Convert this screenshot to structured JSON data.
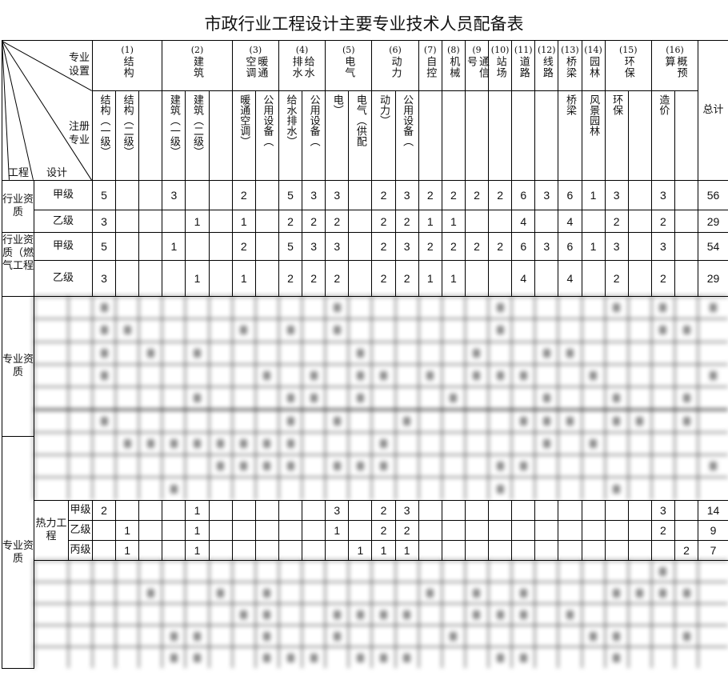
{
  "title": "市政行业工程设计主要专业技术人员配备表",
  "corner": {
    "top_right": "专业设置",
    "mid_right": "注册专业",
    "bottom_mid": "设计",
    "bottom_left": "工程"
  },
  "groups": [
    {
      "num": "(1)",
      "name": "结构",
      "span": 3
    },
    {
      "num": "(2)",
      "name": "建筑",
      "span": 3
    },
    {
      "num": "(3)",
      "name": "暖通空调",
      "span": 2
    },
    {
      "num": "(4)",
      "name": "给水排水",
      "span": 2
    },
    {
      "num": "(5)",
      "name": "电气",
      "span": 2
    },
    {
      "num": "(6)",
      "name": "动力",
      "span": 2
    },
    {
      "num": "(7)",
      "name": "自控",
      "span": 1
    },
    {
      "num": "(8)",
      "name": "机械",
      "span": 1
    },
    {
      "num": "(9",
      "name": "通信号",
      "span": 1
    },
    {
      "num": "(10)",
      "name": "站场",
      "span": 1
    },
    {
      "num": "(11)",
      "name": "道路",
      "span": 1
    },
    {
      "num": "(12)",
      "name": "线路",
      "span": 1
    },
    {
      "num": "(13)",
      "name": "桥梁",
      "span": 1
    },
    {
      "num": "(14)",
      "name": "园林",
      "span": 1
    },
    {
      "num": "(15)",
      "name": "环保",
      "span": 2
    },
    {
      "num": "(16)",
      "name": "概预算",
      "span": 2
    }
  ],
  "subheaders": [
    "结构（一级）",
    "结构（二级）",
    "",
    "建筑（一级）",
    "建筑（二级）",
    "",
    "暖通空调）",
    "公用设备（",
    "给水排水）",
    "公用设备（",
    "电）",
    "电气（供配",
    "动力）",
    "公用设备（",
    "",
    "",
    "",
    "",
    "",
    "",
    "桥梁",
    "风景园林",
    "环保",
    "",
    "造价",
    ""
  ],
  "total_label": "总计",
  "industry_rows": [
    {
      "group": "行业资质",
      "grade": "甲级",
      "values": [
        "5",
        "",
        "",
        "3",
        "",
        "",
        "2",
        "",
        "5",
        "3",
        "3",
        "",
        "2",
        "3",
        "2",
        "2",
        "2",
        "2",
        "6",
        "3",
        "6",
        "1",
        "3",
        "",
        "3",
        ""
      ],
      "total": "56"
    },
    {
      "group": "行业资质",
      "grade": "乙级",
      "values": [
        "3",
        "",
        "",
        "",
        "1",
        "",
        "1",
        "",
        "2",
        "2",
        "2",
        "",
        "2",
        "2",
        "1",
        "1",
        "",
        "",
        "4",
        "",
        "4",
        "",
        "2",
        "",
        "2",
        ""
      ],
      "total": "29"
    },
    {
      "group": "行业资质（燃气工程",
      "grade": "甲级",
      "values": [
        "5",
        "",
        "",
        "1",
        "",
        "",
        "2",
        "",
        "5",
        "3",
        "3",
        "",
        "2",
        "3",
        "2",
        "2",
        "2",
        "2",
        "6",
        "3",
        "6",
        "1",
        "3",
        "",
        "3",
        ""
      ],
      "total": "54"
    },
    {
      "group": "行业资质（燃气工程",
      "grade": "乙级",
      "values": [
        "3",
        "",
        "",
        "",
        "1",
        "",
        "1",
        "",
        "2",
        "2",
        "2",
        "",
        "2",
        "2",
        "1",
        "1",
        "",
        "",
        "4",
        "",
        "4",
        "",
        "2",
        "",
        "2",
        ""
      ],
      "total": "29"
    }
  ],
  "specialty_label_1": "专业资质",
  "specialty_label_2": "专业资质",
  "heat": {
    "name": "热力工程",
    "rows": [
      {
        "grade": "甲级",
        "values": [
          "2",
          "",
          "",
          "",
          "1",
          "",
          "",
          "",
          "",
          "",
          "3",
          "",
          "2",
          "3",
          "",
          "",
          "",
          "",
          "",
          "",
          "",
          "",
          "",
          "",
          "3",
          ""
        ],
        "total": "14"
      },
      {
        "grade": "乙级",
        "values": [
          "",
          "1",
          "",
          "",
          "1",
          "",
          "",
          "",
          "",
          "",
          "1",
          "",
          "2",
          "2",
          "",
          "",
          "",
          "",
          "",
          "",
          "",
          "",
          "",
          "",
          "2",
          ""
        ],
        "total": "9"
      },
      {
        "grade": "丙级",
        "values": [
          "",
          "1",
          "",
          "",
          "1",
          "",
          "",
          "",
          "",
          "",
          "",
          "1",
          "1",
          "1",
          "",
          "",
          "",
          "",
          "",
          "",
          "",
          "",
          "",
          "",
          "",
          "2"
        ],
        "total": "7"
      }
    ]
  },
  "redacted_regions": 2
}
